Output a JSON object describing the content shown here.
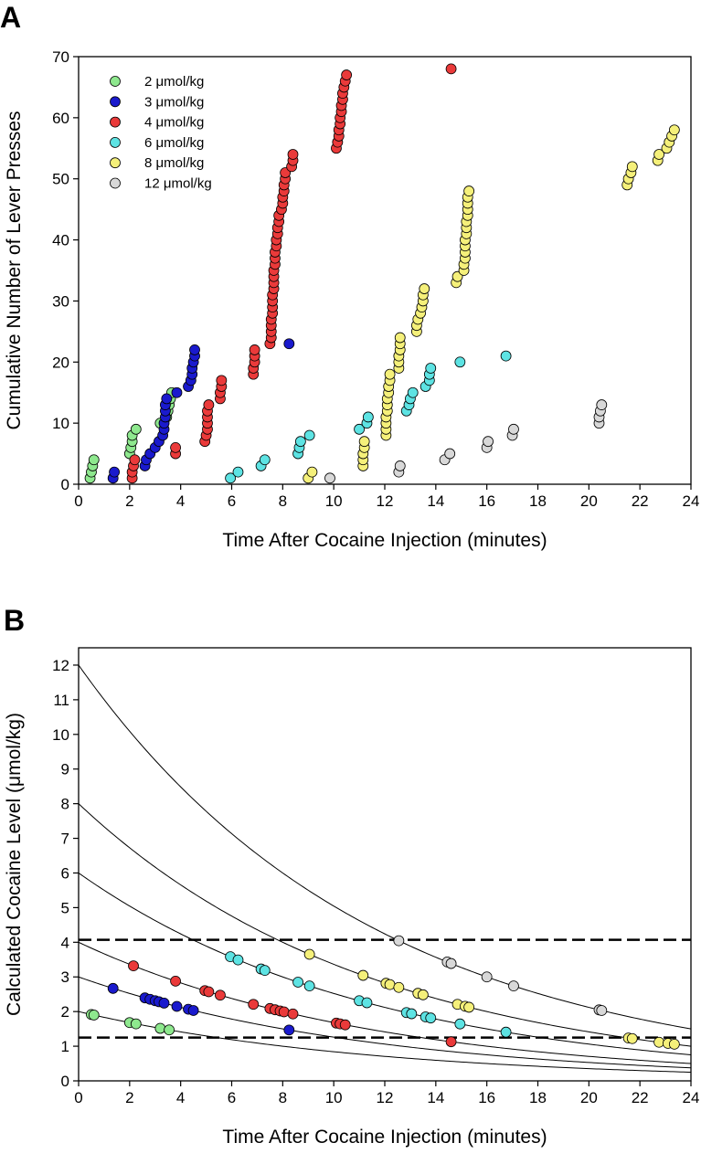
{
  "chart_data": [
    {
      "panel": "A",
      "type": "scatter",
      "xlabel": "Time After Cocaine Injection (minutes)",
      "ylabel": "Cumulative Number of Lever Presses",
      "xlim": [
        0,
        24
      ],
      "ylim": [
        0,
        70
      ],
      "xticks": [
        "0",
        "2",
        "4",
        "6",
        "8",
        "10",
        "12",
        "14",
        "16",
        "18",
        "20",
        "22",
        "24"
      ],
      "yticks": [
        "0",
        "10",
        "20",
        "30",
        "40",
        "50",
        "60",
        "70"
      ],
      "legend": "top-left",
      "grid": false,
      "series": [
        {
          "name": "2 μmol/kg",
          "color": "#8ee88e",
          "points": [
            [
              0.45,
              1
            ],
            [
              0.5,
              2
            ],
            [
              0.55,
              3
            ],
            [
              0.6,
              4
            ],
            [
              2.0,
              5
            ],
            [
              2.05,
              6
            ],
            [
              2.1,
              7
            ],
            [
              2.1,
              8
            ],
            [
              2.25,
              9
            ],
            [
              3.2,
              10
            ],
            [
              3.45,
              11
            ],
            [
              3.5,
              12
            ],
            [
              3.55,
              13
            ],
            [
              3.6,
              14
            ],
            [
              3.65,
              15
            ]
          ]
        },
        {
          "name": "3 μmol/kg",
          "color": "#1a1acd",
          "points": [
            [
              1.35,
              1
            ],
            [
              1.4,
              2
            ],
            [
              2.6,
              3
            ],
            [
              2.65,
              4
            ],
            [
              2.8,
              5
            ],
            [
              3.0,
              6
            ],
            [
              3.15,
              7
            ],
            [
              3.3,
              8
            ],
            [
              3.35,
              9
            ],
            [
              3.35,
              10
            ],
            [
              3.4,
              11
            ],
            [
              3.4,
              12
            ],
            [
              3.4,
              13
            ],
            [
              3.45,
              14
            ],
            [
              3.85,
              15
            ],
            [
              4.3,
              16
            ],
            [
              4.4,
              17
            ],
            [
              4.45,
              18
            ],
            [
              4.45,
              19
            ],
            [
              4.5,
              20
            ],
            [
              4.55,
              21
            ],
            [
              4.55,
              22
            ],
            [
              8.25,
              23
            ]
          ]
        },
        {
          "name": "4 μmol/kg",
          "color": "#ea3a3a",
          "points": [
            [
              2.1,
              1
            ],
            [
              2.1,
              2
            ],
            [
              2.15,
              3
            ],
            [
              2.2,
              4
            ],
            [
              3.8,
              5
            ],
            [
              3.8,
              6
            ],
            [
              4.95,
              7
            ],
            [
              5.0,
              8
            ],
            [
              5.05,
              9
            ],
            [
              5.05,
              10
            ],
            [
              5.05,
              11
            ],
            [
              5.05,
              12
            ],
            [
              5.1,
              13
            ],
            [
              5.55,
              14
            ],
            [
              5.55,
              15
            ],
            [
              5.6,
              16
            ],
            [
              5.6,
              17
            ],
            [
              6.85,
              18
            ],
            [
              6.85,
              19
            ],
            [
              6.9,
              20
            ],
            [
              6.9,
              21
            ],
            [
              6.9,
              22
            ],
            [
              7.5,
              23
            ],
            [
              7.55,
              24
            ],
            [
              7.55,
              25
            ],
            [
              7.55,
              26
            ],
            [
              7.55,
              27
            ],
            [
              7.6,
              28
            ],
            [
              7.6,
              29
            ],
            [
              7.6,
              30
            ],
            [
              7.6,
              31
            ],
            [
              7.65,
              32
            ],
            [
              7.65,
              33
            ],
            [
              7.65,
              34
            ],
            [
              7.65,
              35
            ],
            [
              7.7,
              36
            ],
            [
              7.7,
              37
            ],
            [
              7.7,
              38
            ],
            [
              7.75,
              39
            ],
            [
              7.75,
              40
            ],
            [
              7.8,
              41
            ],
            [
              7.8,
              42
            ],
            [
              7.85,
              43
            ],
            [
              7.85,
              44
            ],
            [
              7.95,
              45
            ],
            [
              8.0,
              46
            ],
            [
              8.0,
              47
            ],
            [
              8.05,
              48
            ],
            [
              8.05,
              49
            ],
            [
              8.1,
              50
            ],
            [
              8.1,
              51
            ],
            [
              8.35,
              52
            ],
            [
              8.4,
              53
            ],
            [
              8.4,
              54
            ],
            [
              10.1,
              55
            ],
            [
              10.15,
              56
            ],
            [
              10.2,
              57
            ],
            [
              10.2,
              58
            ],
            [
              10.25,
              59
            ],
            [
              10.25,
              60
            ],
            [
              10.3,
              61
            ],
            [
              10.3,
              62
            ],
            [
              10.35,
              63
            ],
            [
              10.35,
              64
            ],
            [
              10.4,
              65
            ],
            [
              10.45,
              66
            ],
            [
              10.5,
              67
            ],
            [
              14.6,
              68
            ]
          ]
        },
        {
          "name": "6 μmol/kg",
          "color": "#5de3e3",
          "points": [
            [
              5.95,
              1
            ],
            [
              6.25,
              2
            ],
            [
              7.15,
              3
            ],
            [
              7.3,
              4
            ],
            [
              8.6,
              5
            ],
            [
              8.65,
              6
            ],
            [
              8.7,
              7
            ],
            [
              9.05,
              8
            ],
            [
              11.0,
              9
            ],
            [
              11.3,
              10
            ],
            [
              11.35,
              11
            ],
            [
              12.85,
              12
            ],
            [
              12.95,
              13
            ],
            [
              13.0,
              14
            ],
            [
              13.1,
              15
            ],
            [
              13.6,
              16
            ],
            [
              13.75,
              17
            ],
            [
              13.75,
              18
            ],
            [
              13.8,
              19
            ],
            [
              14.95,
              20
            ],
            [
              16.75,
              21
            ]
          ]
        },
        {
          "name": "8 μmol/kg",
          "color": "#f5f07a",
          "points": [
            [
              9.0,
              1
            ],
            [
              9.15,
              2
            ],
            [
              11.15,
              3
            ],
            [
              11.15,
              4
            ],
            [
              11.15,
              5
            ],
            [
              11.2,
              6
            ],
            [
              11.2,
              7
            ],
            [
              12.05,
              8
            ],
            [
              12.05,
              9
            ],
            [
              12.05,
              10
            ],
            [
              12.05,
              11
            ],
            [
              12.1,
              12
            ],
            [
              12.1,
              13
            ],
            [
              12.1,
              14
            ],
            [
              12.15,
              15
            ],
            [
              12.15,
              16
            ],
            [
              12.2,
              17
            ],
            [
              12.2,
              18
            ],
            [
              12.55,
              19
            ],
            [
              12.55,
              20
            ],
            [
              12.55,
              21
            ],
            [
              12.6,
              22
            ],
            [
              12.6,
              23
            ],
            [
              12.6,
              24
            ],
            [
              13.25,
              25
            ],
            [
              13.25,
              26
            ],
            [
              13.3,
              27
            ],
            [
              13.4,
              28
            ],
            [
              13.45,
              29
            ],
            [
              13.5,
              30
            ],
            [
              13.5,
              31
            ],
            [
              13.55,
              32
            ],
            [
              14.8,
              33
            ],
            [
              14.85,
              34
            ],
            [
              15.1,
              35
            ],
            [
              15.1,
              36
            ],
            [
              15.15,
              37
            ],
            [
              15.15,
              38
            ],
            [
              15.15,
              39
            ],
            [
              15.15,
              40
            ],
            [
              15.2,
              41
            ],
            [
              15.2,
              42
            ],
            [
              15.2,
              43
            ],
            [
              15.25,
              44
            ],
            [
              15.25,
              45
            ],
            [
              15.25,
              46
            ],
            [
              15.25,
              47
            ],
            [
              15.3,
              48
            ],
            [
              21.5,
              49
            ],
            [
              21.55,
              50
            ],
            [
              21.65,
              51
            ],
            [
              21.7,
              52
            ],
            [
              22.7,
              53
            ],
            [
              22.75,
              54
            ],
            [
              23.05,
              55
            ],
            [
              23.15,
              56
            ],
            [
              23.25,
              57
            ],
            [
              23.35,
              58
            ]
          ]
        },
        {
          "name": "12 μmol/kg",
          "color": "#d8d8d8",
          "points": [
            [
              9.85,
              1
            ],
            [
              12.55,
              2
            ],
            [
              12.6,
              3
            ],
            [
              14.35,
              4
            ],
            [
              14.55,
              5
            ],
            [
              16.0,
              6
            ],
            [
              16.05,
              7
            ],
            [
              17.0,
              8
            ],
            [
              17.05,
              9
            ],
            [
              20.4,
              10
            ],
            [
              20.4,
              11
            ],
            [
              20.45,
              12
            ],
            [
              20.5,
              13
            ]
          ]
        }
      ]
    },
    {
      "panel": "B",
      "type": "line",
      "xlabel": "Time After Cocaine Injection (minutes)",
      "ylabel": "Calculated Cocaine Level (μmol/kg)",
      "xlim": [
        0,
        24
      ],
      "ylim": [
        0,
        12.5
      ],
      "xticks": [
        "0",
        "2",
        "4",
        "6",
        "8",
        "10",
        "12",
        "14",
        "16",
        "18",
        "20",
        "22",
        "24"
      ],
      "yticks": [
        "0",
        "1",
        "2",
        "3",
        "4",
        "5",
        "6",
        "7",
        "8",
        "9",
        "10",
        "11",
        "12"
      ],
      "grid": false,
      "decay_curves_initial_levels": [
        2,
        3,
        4,
        6,
        8,
        12
      ],
      "half_life_minutes": 8.0,
      "threshold_lines": [
        4.07,
        1.25
      ],
      "series": [
        {
          "name": "2 μmol/kg",
          "color": "#8ee88e",
          "times": [
            0.5,
            0.6,
            2.0,
            2.25,
            3.2,
            3.55
          ]
        },
        {
          "name": "3 μmol/kg",
          "color": "#1a1acd",
          "times": [
            1.35,
            2.6,
            2.8,
            3.0,
            3.15,
            3.35,
            3.85,
            4.3,
            4.5,
            8.25
          ]
        },
        {
          "name": "4 μmol/kg",
          "color": "#ea3a3a",
          "times": [
            2.15,
            3.8,
            4.95,
            5.1,
            5.55,
            6.85,
            7.5,
            7.7,
            7.9,
            8.05,
            8.4,
            10.1,
            10.25,
            10.45,
            14.6
          ]
        },
        {
          "name": "6 μmol/kg",
          "color": "#5de3e3",
          "times": [
            5.95,
            6.25,
            7.15,
            7.3,
            8.6,
            9.05,
            11.0,
            11.3,
            12.85,
            13.05,
            13.6,
            13.8,
            14.95,
            16.75
          ]
        },
        {
          "name": "8 μmol/kg",
          "color": "#f5f07a",
          "times": [
            9.05,
            11.15,
            12.05,
            12.2,
            12.55,
            13.3,
            13.5,
            14.85,
            15.15,
            15.3,
            21.55,
            21.7,
            22.75,
            23.1,
            23.35
          ]
        },
        {
          "name": "12 μmol/kg",
          "color": "#d8d8d8",
          "times": [
            12.55,
            14.45,
            14.6,
            16.0,
            17.05,
            20.4,
            20.5
          ]
        }
      ]
    }
  ]
}
